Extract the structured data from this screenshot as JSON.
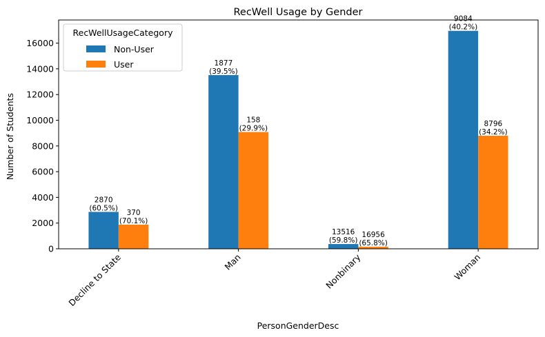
{
  "chart_data": {
    "type": "bar",
    "title": "RecWell Usage by Gender",
    "xlabel": "PersonGenderDesc",
    "ylabel": "Number of Students",
    "ylim": [
      0,
      17800
    ],
    "yticks": [
      0,
      2000,
      4000,
      6000,
      8000,
      10000,
      12000,
      14000,
      16000
    ],
    "grid": false,
    "legend": {
      "title": "RecWellUsageCategory",
      "placement": "top-left"
    },
    "categories": [
      "Decline to State",
      "Man",
      "Nonbinary",
      "Woman"
    ],
    "series": [
      {
        "name": "Non-User",
        "color": "#1f77b4",
        "values": [
          2870,
          13516,
          370,
          16956
        ],
        "labels": [
          [
            "2870",
            "(60.5%)"
          ],
          [
            "1877",
            "(39.5%)"
          ],
          [
            "13516",
            "(59.8%)"
          ],
          [
            "9084",
            "(40.2%)"
          ]
        ]
      },
      {
        "name": "User",
        "color": "#ff7f0e",
        "values": [
          1877,
          9084,
          158,
          8796
        ],
        "labels": [
          [
            "370",
            "(70.1%)"
          ],
          [
            "158",
            "(29.9%)"
          ],
          [
            "16956",
            "(65.8%)"
          ],
          [
            "8796",
            "(34.2%)"
          ]
        ]
      }
    ]
  }
}
